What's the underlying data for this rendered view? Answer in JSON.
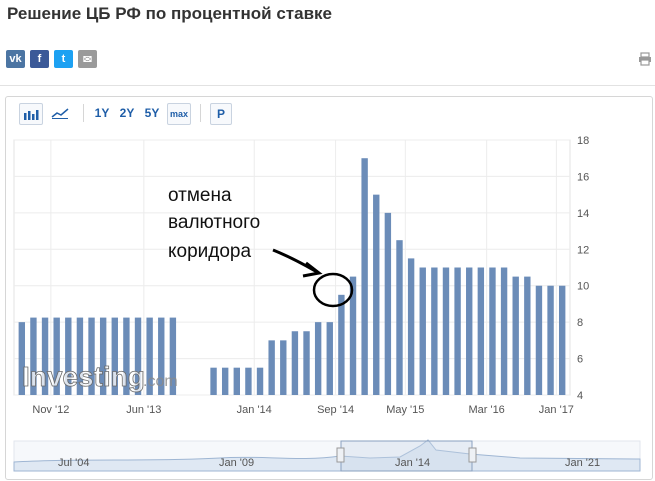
{
  "page": {
    "title": "Решение ЦБ РФ по процентной ставке"
  },
  "share": [
    {
      "name": "vk-share-button",
      "label": "vk",
      "color": "#4c75a3"
    },
    {
      "name": "facebook-share-button",
      "label": "f",
      "color": "#3b5998"
    },
    {
      "name": "twitter-share-button",
      "label": "t",
      "color": "#1da1f2"
    },
    {
      "name": "email-share-button",
      "label": "✉",
      "color": "#9a9a9a"
    }
  ],
  "toolbar": {
    "y1": "1Y",
    "y2": "2Y",
    "y5": "5Y",
    "max": "max",
    "p": "P"
  },
  "annotation": {
    "lines": [
      "отмена",
      "валютного",
      "коридора"
    ]
  },
  "watermark": {
    "brand": "Investing",
    "suffix": ".com"
  },
  "navigator": {
    "labels": [
      "Jul '04",
      "Jan '09",
      "Jan '14",
      "Jan '21"
    ]
  },
  "chart_data": {
    "type": "bar",
    "title": "Решение ЦБ РФ по процентной ставке",
    "xlabel": "",
    "ylabel": "",
    "ylim": [
      4,
      18
    ],
    "yticks": [
      4,
      6,
      8,
      10,
      12,
      14,
      16,
      18
    ],
    "xtick_labels": [
      "Nov '12",
      "Jun '13",
      "Jan '14",
      "Sep '14",
      "May '15",
      "Mar '16",
      "Jan '17"
    ],
    "xtick_index": [
      2.5,
      10.5,
      17.5,
      24.5,
      30.5,
      37.5,
      43.5
    ],
    "gap_after_index": 13,
    "values": [
      8,
      8.25,
      8.25,
      8.25,
      8.25,
      8.25,
      8.25,
      8.25,
      8.25,
      8.25,
      8.25,
      8.25,
      8.25,
      8.25,
      5.5,
      5.5,
      5.5,
      5.5,
      5.5,
      7,
      7,
      7.5,
      7.5,
      8,
      8,
      9.5,
      10.5,
      17,
      15,
      14,
      12.5,
      11.5,
      11,
      11,
      11,
      11,
      11,
      11,
      11,
      11,
      10.5,
      10.5,
      10,
      10,
      10
    ],
    "color": "#6b8cb8",
    "grid": true
  }
}
